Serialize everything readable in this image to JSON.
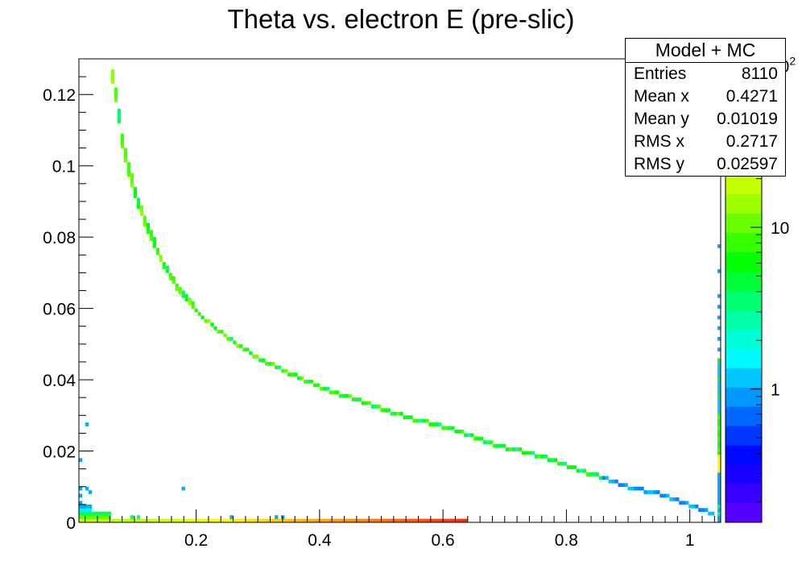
{
  "chart_data": {
    "type": "heatmap",
    "title": "Theta vs. electron E (pre-slic)",
    "xlabel": "",
    "ylabel": "",
    "xlim": [
      0.01,
      1.05
    ],
    "ylim": [
      0,
      0.13
    ],
    "x_ticks": [
      0.2,
      0.4,
      0.6,
      0.8,
      1
    ],
    "x_tick_labels": [
      "0.2",
      "0.4",
      "0.6",
      "0.8",
      "1"
    ],
    "y_ticks": [
      0,
      0.02,
      0.04,
      0.06,
      0.08,
      0.1,
      0.12
    ],
    "y_tick_labels": [
      "0",
      "0.02",
      "0.04",
      "0.06",
      "0.08",
      "0.1",
      "0.12"
    ],
    "z_scale": "log",
    "z_range": [
      0.15,
      110
    ],
    "colorbar_ticks": [
      1,
      10,
      100
    ],
    "colorbar_tick_labels": [
      "1",
      "10",
      "10^2"
    ],
    "grid": false,
    "bins": {
      "x_edges": [
        0.01,
        1.05
      ],
      "x_count": 200,
      "y_edges": [
        0,
        0.13
      ],
      "y_count": 130
    },
    "band_curve": [
      [
        0.06,
        0.128
      ],
      [
        0.07,
        0.118
      ],
      [
        0.08,
        0.106
      ],
      [
        0.09,
        0.098
      ],
      [
        0.1,
        0.092
      ],
      [
        0.12,
        0.082
      ],
      [
        0.14,
        0.074
      ],
      [
        0.16,
        0.068
      ],
      [
        0.18,
        0.063
      ],
      [
        0.2,
        0.059
      ],
      [
        0.25,
        0.052
      ],
      [
        0.3,
        0.046
      ],
      [
        0.35,
        0.042
      ],
      [
        0.4,
        0.038
      ],
      [
        0.45,
        0.035
      ],
      [
        0.5,
        0.032
      ],
      [
        0.55,
        0.029
      ],
      [
        0.6,
        0.027
      ],
      [
        0.65,
        0.024
      ],
      [
        0.7,
        0.021
      ],
      [
        0.75,
        0.019
      ],
      [
        0.8,
        0.016
      ],
      [
        0.85,
        0.013
      ],
      [
        0.9,
        0.01
      ],
      [
        0.95,
        0.008
      ],
      [
        1.0,
        0.005
      ],
      [
        1.04,
        0.002
      ]
    ],
    "base_band": {
      "x_range": [
        0.01,
        0.635
      ],
      "y_range": [
        0,
        0.001
      ]
    },
    "stats_box": {
      "title": "Model + MC",
      "entries": [
        {
          "label": "Entries",
          "value": "8110"
        },
        {
          "label": "Mean x",
          "value": "0.4271"
        },
        {
          "label": "Mean y",
          "value": "0.01019"
        },
        {
          "label": "RMS x",
          "value": "0.2717"
        },
        {
          "label": "RMS y",
          "value": "0.02597"
        }
      ]
    }
  }
}
